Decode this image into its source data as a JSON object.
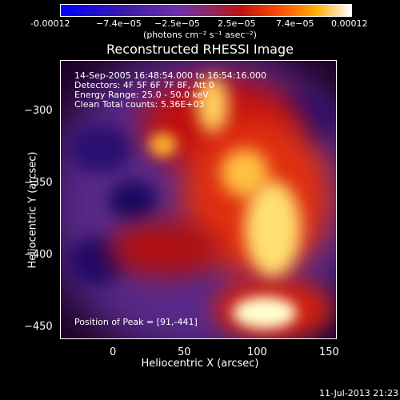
{
  "colorbar": {
    "ticks": [
      "-0.00012",
      "−7.4e−05",
      "−2.5e−05",
      "2.5e−05",
      "7.4e−05",
      "0.00012"
    ],
    "units": "(photons cm⁻² s⁻¹ asec⁻²)"
  },
  "title": "Reconstructed RHESSI Image",
  "info": [
    "14-Sep-2005 16:48:54.000 to 16:54:16.000",
    "Detectors: 4F 5F 6F 7F 8F, Att 0",
    "Energy Range: 25.0 - 50.0 keV",
    "Clean     Total counts: 5.36E+03"
  ],
  "peak": "Position of Peak = [91,-441]",
  "y_axis": {
    "label": "Heliocentric Y (arcsec)",
    "ticks": [
      "−300",
      "−350",
      "−400",
      "−450"
    ]
  },
  "x_axis": {
    "label": "Heliocentric X (arcsec)",
    "ticks": [
      "0",
      "50",
      "100",
      "150"
    ]
  },
  "timestamp": "11-Jul-2013 21:23"
}
